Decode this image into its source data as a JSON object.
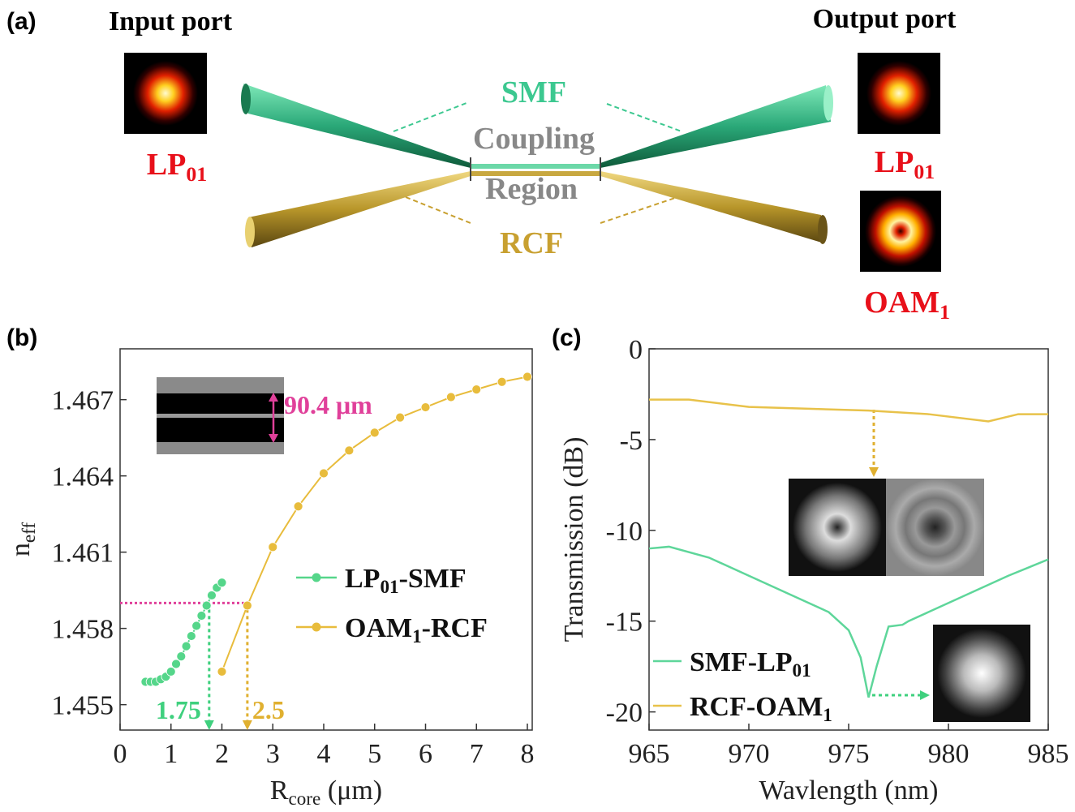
{
  "panel_labels": [
    "(a)",
    "(b)",
    "(c)"
  ],
  "diagram": {
    "input_title": "Input port",
    "output_title": "Output port",
    "smf": "SMF",
    "coupling": "Coupling",
    "region": "Region",
    "rcf": "RCF",
    "input_mode": {
      "main": "LP",
      "sub": "01"
    },
    "output_modes": [
      {
        "main": "LP",
        "sub": "01"
      },
      {
        "main": "OAM",
        "sub": "1"
      }
    ]
  },
  "chart_data": [
    {
      "type": "line",
      "x_label": {
        "main": "R",
        "sub": "core",
        "after": " (μm)"
      },
      "y_label": {
        "main": "n",
        "sub": "eff"
      },
      "xlim": [
        0,
        8
      ],
      "xticks": [
        0,
        1,
        2,
        3,
        4,
        5,
        6,
        7,
        8
      ],
      "ylim": [
        1.454,
        1.469
      ],
      "yticks": [
        1.455,
        1.458,
        1.461,
        1.464,
        1.467
      ],
      "inset_label": "90.4 μm",
      "hline": {
        "y": 1.459,
        "color": "#e0409a"
      },
      "markers": [
        {
          "x": 1.75,
          "y": 1.459,
          "color": "#3fd07e"
        },
        {
          "x": 2.5,
          "y": 1.459,
          "color": "#e0b030"
        }
      ],
      "legend": "center right",
      "series": [
        {
          "name": {
            "main": "LP",
            "sub": "01",
            "after": "-SMF"
          },
          "color": "#55d68a",
          "x": [
            0.5,
            0.6,
            0.7,
            0.8,
            0.9,
            1.0,
            1.1,
            1.2,
            1.3,
            1.4,
            1.5,
            1.6,
            1.7,
            1.8,
            1.9,
            2.0
          ],
          "values": [
            1.4559,
            1.4559,
            1.4559,
            1.456,
            1.4561,
            1.4563,
            1.4566,
            1.4569,
            1.4573,
            1.4577,
            1.4581,
            1.4585,
            1.4589,
            1.4593,
            1.4596,
            1.4598
          ]
        },
        {
          "name": {
            "main": "OAM",
            "sub": "1",
            "after": "-RCF"
          },
          "color": "#e8bc3c",
          "x": [
            2,
            2.5,
            3,
            3.5,
            4,
            4.5,
            5,
            5.5,
            6,
            6.5,
            7,
            7.5,
            8
          ],
          "values": [
            1.4563,
            1.4589,
            1.4612,
            1.4628,
            1.4641,
            1.465,
            1.4657,
            1.4663,
            1.4667,
            1.4671,
            1.4674,
            1.4677,
            1.4679
          ]
        }
      ]
    },
    {
      "type": "line",
      "x_label": "Wavlength (nm)",
      "y_label": "Transmission (dB)",
      "xlim": [
        965,
        985
      ],
      "xticks": [
        965,
        970,
        975,
        980,
        985
      ],
      "ylim": [
        -21,
        0
      ],
      "yticks": [
        0,
        -5,
        -10,
        -15,
        -20
      ],
      "legend": "lower left",
      "series": [
        {
          "name": {
            "main": "SMF-LP",
            "sub": "01"
          },
          "color": "#5ed69a",
          "x": [
            965,
            966,
            968,
            970,
            972,
            974,
            975,
            975.6,
            976,
            976.4,
            977,
            977.7,
            978,
            979,
            981,
            983,
            985
          ],
          "values": [
            -11,
            -10.9,
            -11.5,
            -12.5,
            -13.5,
            -14.5,
            -15.5,
            -17,
            -19.2,
            -17.5,
            -15.3,
            -15.2,
            -15,
            -14.5,
            -13.5,
            -12.5,
            -11.6
          ]
        },
        {
          "name": {
            "main": "RCF-OAM",
            "sub": "1"
          },
          "color": "#e8c24a",
          "x": [
            965,
            967,
            970,
            973,
            976,
            979,
            982,
            983.5,
            985
          ],
          "values": [
            -2.8,
            -2.8,
            -3.2,
            -3.3,
            -3.4,
            -3.6,
            -4,
            -3.6,
            -3.6
          ]
        }
      ]
    }
  ]
}
